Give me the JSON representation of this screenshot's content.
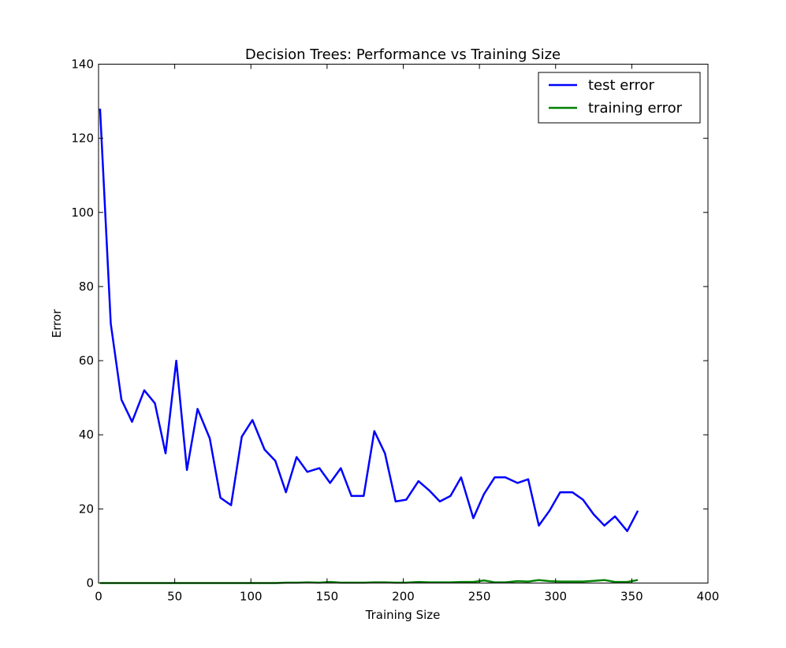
{
  "chart_data": {
    "type": "line",
    "title": "Decision Trees: Performance vs Training Size",
    "xlabel": "Training Size",
    "ylabel": "Error",
    "xlim": [
      0,
      400
    ],
    "ylim": [
      0,
      140
    ],
    "xticks": [
      "0",
      "50",
      "100",
      "150",
      "200",
      "250",
      "300",
      "350",
      "400"
    ],
    "yticks": [
      "0",
      "20",
      "40",
      "60",
      "80",
      "100",
      "120",
      "140"
    ],
    "grid": false,
    "legend_position": "top-right",
    "x": [
      1,
      8,
      15,
      22,
      30,
      37,
      44,
      51,
      58,
      65,
      73,
      80,
      87,
      94,
      101,
      109,
      116,
      123,
      130,
      137,
      145,
      152,
      159,
      166,
      174,
      181,
      188,
      195,
      202,
      210,
      217,
      224,
      231,
      238,
      246,
      253,
      260,
      267,
      275,
      282,
      289,
      296,
      303,
      311,
      318,
      325,
      332,
      339,
      347,
      354
    ],
    "series": [
      {
        "name": "test error",
        "color": "#0000ff",
        "values": [
          128,
          70,
          49.5,
          43.5,
          52,
          48.5,
          35,
          60,
          30.5,
          47,
          39,
          23,
          21,
          39.5,
          44,
          36,
          33,
          24.5,
          34,
          30,
          31,
          27,
          31,
          23.5,
          23.5,
          41,
          35,
          22,
          22.5,
          27.5,
          25,
          22,
          23.5,
          28.5,
          17.5,
          24,
          28.5,
          28.5,
          27,
          28,
          15.5,
          19.5,
          24.5,
          24.5,
          22.5,
          18.5,
          15.5,
          18,
          14,
          19.5
        ]
      },
      {
        "name": "training error",
        "color": "#008000",
        "values": [
          0,
          0,
          0,
          0,
          0,
          0,
          0,
          0,
          0,
          0,
          0,
          0,
          0,
          0,
          0,
          0,
          0,
          0.1,
          0.1,
          0.2,
          0.1,
          0.3,
          0.1,
          0.1,
          0.1,
          0.2,
          0.2,
          0.1,
          0.1,
          0.3,
          0.2,
          0.2,
          0.2,
          0.3,
          0.3,
          0.7,
          0.2,
          0.2,
          0.5,
          0.4,
          0.8,
          0.5,
          0.4,
          0.4,
          0.4,
          0.6,
          0.8,
          0.3,
          0.3,
          0.8
        ]
      }
    ]
  }
}
